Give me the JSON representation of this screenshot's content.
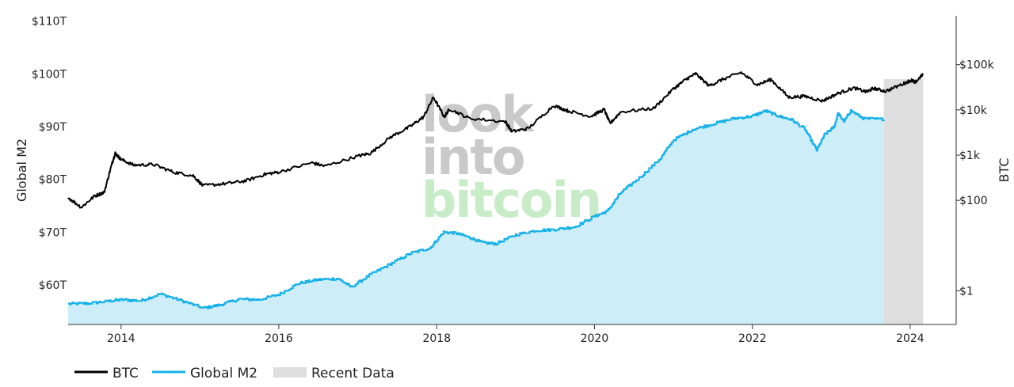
{
  "chart_data": {
    "type": "line",
    "watermark": [
      "look",
      "into",
      "bitcoin"
    ],
    "y_left": {
      "label": "Global M2",
      "range": [
        52.5,
        111
      ],
      "ticks": [
        {
          "value": 60,
          "label": "$60T"
        },
        {
          "value": 70,
          "label": "$70T"
        },
        {
          "value": 80,
          "label": "$80T"
        },
        {
          "value": 90,
          "label": "$90T"
        },
        {
          "value": 100,
          "label": "$100T"
        },
        {
          "value": 110,
          "label": "$110T"
        }
      ]
    },
    "y_right": {
      "label": "BTC",
      "scale": "log",
      "range": [
        0.18,
        1200000
      ],
      "ticks": [
        {
          "value": 1,
          "label": "$1"
        },
        {
          "value": 100,
          "label": "$100"
        },
        {
          "value": 1000,
          "label": "$1k"
        },
        {
          "value": 10000,
          "label": "$10k"
        },
        {
          "value": 100000,
          "label": "$100k"
        }
      ]
    },
    "x_axis": {
      "range": [
        "2013-05-01",
        "2024-08-01"
      ],
      "ticks": [
        "2014",
        "2016",
        "2018",
        "2020",
        "2022",
        "2024"
      ]
    },
    "recent_data_range": [
      "2023-09-01",
      "2024-03-01"
    ],
    "legend": [
      {
        "name": "BTC",
        "color": "#000000",
        "kind": "line"
      },
      {
        "name": "Global M2",
        "color": "#16b0e8",
        "kind": "line"
      },
      {
        "name": "Recent Data",
        "color": "#dedede",
        "kind": "area"
      }
    ],
    "series": [
      {
        "name": "BTC",
        "color": "#000000",
        "axis": "right",
        "points": [
          [
            "2013-05-01",
            115
          ],
          [
            "2013-07-01",
            70
          ],
          [
            "2013-09-01",
            125
          ],
          [
            "2013-10-15",
            150
          ],
          [
            "2013-11-20",
            650
          ],
          [
            "2013-12-05",
            1100
          ],
          [
            "2014-01-01",
            800
          ],
          [
            "2014-03-01",
            600
          ],
          [
            "2014-06-01",
            620
          ],
          [
            "2014-09-01",
            420
          ],
          [
            "2014-12-01",
            350
          ],
          [
            "2015-01-15",
            210
          ],
          [
            "2015-05-01",
            235
          ],
          [
            "2015-08-01",
            270
          ],
          [
            "2015-11-01",
            380
          ],
          [
            "2016-01-01",
            420
          ],
          [
            "2016-06-01",
            680
          ],
          [
            "2016-08-01",
            570
          ],
          [
            "2017-01-01",
            950
          ],
          [
            "2017-03-01",
            1100
          ],
          [
            "2017-06-01",
            2500
          ],
          [
            "2017-09-01",
            4300
          ],
          [
            "2017-11-01",
            7000
          ],
          [
            "2017-12-17",
            19000
          ],
          [
            "2018-02-05",
            7000
          ],
          [
            "2018-03-01",
            10500
          ],
          [
            "2018-06-01",
            6500
          ],
          [
            "2018-11-15",
            5500
          ],
          [
            "2018-12-15",
            3300
          ],
          [
            "2019-03-01",
            3900
          ],
          [
            "2019-06-26",
            12500
          ],
          [
            "2019-09-01",
            9500
          ],
          [
            "2019-12-15",
            7200
          ],
          [
            "2020-02-15",
            10200
          ],
          [
            "2020-03-13",
            5000
          ],
          [
            "2020-05-01",
            9000
          ],
          [
            "2020-10-01",
            10800
          ],
          [
            "2020-12-31",
            29000
          ],
          [
            "2021-03-01",
            48000
          ],
          [
            "2021-04-14",
            63000
          ],
          [
            "2021-06-15",
            34000
          ],
          [
            "2021-08-15",
            47000
          ],
          [
            "2021-11-10",
            67000
          ],
          [
            "2022-01-24",
            36000
          ],
          [
            "2022-03-28",
            47000
          ],
          [
            "2022-06-18",
            19000
          ],
          [
            "2022-09-01",
            20000
          ],
          [
            "2022-11-21",
            15800
          ],
          [
            "2023-01-31",
            23000
          ],
          [
            "2023-04-14",
            30500
          ],
          [
            "2023-06-15",
            25000
          ],
          [
            "2023-07-15",
            30000
          ],
          [
            "2023-09-10",
            25800
          ],
          [
            "2023-12-01",
            38000
          ],
          [
            "2024-01-10",
            46000
          ],
          [
            "2024-01-23",
            39500
          ],
          [
            "2024-03-01",
            62000
          ]
        ]
      },
      {
        "name": "Global M2",
        "color": "#16b0e8",
        "fill": "#cdeef9",
        "axis": "left",
        "points": [
          [
            "2013-05-01",
            56.4
          ],
          [
            "2013-08-01",
            56.5
          ],
          [
            "2013-11-01",
            56.9
          ],
          [
            "2014-01-01",
            57.2
          ],
          [
            "2014-04-01",
            57.0
          ],
          [
            "2014-07-01",
            58.3
          ],
          [
            "2014-10-01",
            57.1
          ],
          [
            "2015-01-15",
            55.6
          ],
          [
            "2015-04-01",
            56.2
          ],
          [
            "2015-07-01",
            57.3
          ],
          [
            "2015-10-01",
            57.2
          ],
          [
            "2016-01-01",
            58.2
          ],
          [
            "2016-04-01",
            60.3
          ],
          [
            "2016-07-01",
            61.0
          ],
          [
            "2016-10-01",
            61.2
          ],
          [
            "2016-12-01",
            59.6
          ],
          [
            "2017-03-01",
            62.0
          ],
          [
            "2017-06-01",
            64.0
          ],
          [
            "2017-09-01",
            66.0
          ],
          [
            "2017-12-01",
            67.0
          ],
          [
            "2018-02-01",
            70.0
          ],
          [
            "2018-04-01",
            69.8
          ],
          [
            "2018-06-01",
            69.0
          ],
          [
            "2018-08-01",
            68.0
          ],
          [
            "2018-10-01",
            67.8
          ],
          [
            "2019-01-01",
            69.5
          ],
          [
            "2019-04-01",
            70.3
          ],
          [
            "2019-07-01",
            70.5
          ],
          [
            "2019-10-01",
            71.0
          ],
          [
            "2020-01-01",
            73.0
          ],
          [
            "2020-03-01",
            74.0
          ],
          [
            "2020-05-01",
            77.5
          ],
          [
            "2020-08-01",
            80.5
          ],
          [
            "2020-11-01",
            84.0
          ],
          [
            "2021-01-01",
            87.5
          ],
          [
            "2021-04-01",
            89.5
          ],
          [
            "2021-07-01",
            90.5
          ],
          [
            "2021-10-01",
            91.5
          ],
          [
            "2022-01-01",
            92.0
          ],
          [
            "2022-03-01",
            93.0
          ],
          [
            "2022-05-01",
            92.0
          ],
          [
            "2022-07-01",
            91.3
          ],
          [
            "2022-09-01",
            89.5
          ],
          [
            "2022-10-25",
            85.5
          ],
          [
            "2022-12-01",
            88.5
          ],
          [
            "2023-01-15",
            90.0
          ],
          [
            "2023-02-01",
            92.5
          ],
          [
            "2023-03-01",
            91.0
          ],
          [
            "2023-04-01",
            93.0
          ],
          [
            "2023-06-01",
            91.5
          ],
          [
            "2023-09-01",
            91.4
          ]
        ]
      }
    ]
  }
}
